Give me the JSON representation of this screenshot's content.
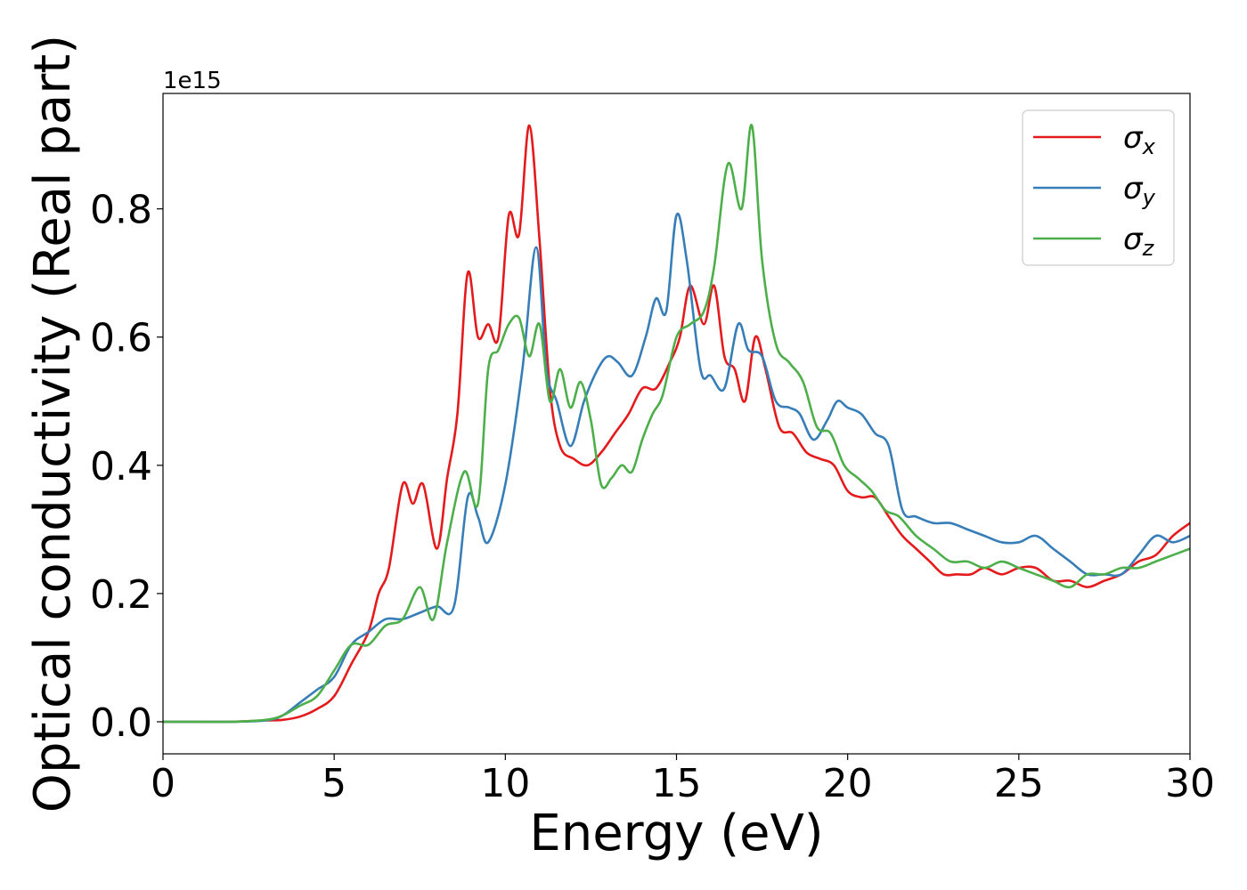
{
  "chart_data": {
    "type": "line",
    "xlabel": "Energy (eV)",
    "ylabel": "Optical conductivity (Real part)",
    "y_offset_label": "1e15",
    "xlim": [
      0,
      30
    ],
    "ylim": [
      -0.05,
      0.98
    ],
    "xticks": [
      0,
      5,
      10,
      15,
      20,
      25,
      30
    ],
    "xtick_labels": [
      "0",
      "5",
      "10",
      "15",
      "20",
      "25",
      "30"
    ],
    "yticks": [
      0.0,
      0.2,
      0.4,
      0.6,
      0.8
    ],
    "ytick_labels": [
      "0.0",
      "0.2",
      "0.4",
      "0.6",
      "0.8"
    ],
    "grid": false,
    "legend_position": "top-right",
    "series": [
      {
        "name": "σx",
        "symbol": "σ",
        "subscript": "x",
        "color": "#e41a1c",
        "x": [
          0,
          1,
          2,
          3,
          3.5,
          4,
          4.5,
          5,
          5.5,
          6,
          6.3,
          6.6,
          7,
          7.3,
          7.6,
          8,
          8.3,
          8.6,
          8.9,
          9.2,
          9.5,
          9.8,
          10.1,
          10.4,
          10.7,
          11,
          11.3,
          11.6,
          12,
          12.4,
          12.8,
          13.2,
          13.6,
          14,
          14.4,
          14.8,
          15.1,
          15.4,
          15.8,
          16.1,
          16.4,
          16.7,
          17,
          17.3,
          17.6,
          18,
          18.4,
          18.8,
          19.2,
          19.6,
          20,
          20.4,
          20.8,
          21.2,
          21.6,
          22,
          22.4,
          22.8,
          23.2,
          23.6,
          24,
          24.5,
          25,
          25.5,
          26,
          26.5,
          27,
          27.5,
          28,
          28.5,
          29,
          29.5,
          30
        ],
        "values": [
          0.0,
          0.0,
          0.0,
          0.002,
          0.003,
          0.008,
          0.02,
          0.04,
          0.09,
          0.14,
          0.2,
          0.24,
          0.37,
          0.34,
          0.37,
          0.27,
          0.38,
          0.48,
          0.7,
          0.6,
          0.62,
          0.6,
          0.79,
          0.76,
          0.93,
          0.75,
          0.52,
          0.43,
          0.41,
          0.4,
          0.42,
          0.45,
          0.48,
          0.52,
          0.52,
          0.56,
          0.6,
          0.68,
          0.62,
          0.68,
          0.57,
          0.55,
          0.5,
          0.6,
          0.55,
          0.46,
          0.45,
          0.42,
          0.41,
          0.4,
          0.36,
          0.35,
          0.35,
          0.32,
          0.29,
          0.27,
          0.25,
          0.23,
          0.23,
          0.23,
          0.24,
          0.23,
          0.24,
          0.24,
          0.22,
          0.22,
          0.21,
          0.22,
          0.23,
          0.25,
          0.26,
          0.29,
          0.31
        ]
      },
      {
        "name": "σy",
        "symbol": "σ",
        "subscript": "y",
        "color": "#377eb8",
        "x": [
          0,
          1,
          2,
          3,
          3.5,
          4,
          4.5,
          5,
          5.5,
          6,
          6.5,
          7,
          7.5,
          8,
          8.5,
          8.9,
          9.2,
          9.5,
          10,
          10.5,
          10.9,
          11.2,
          11.5,
          11.9,
          12.3,
          12.7,
          13,
          13.3,
          13.7,
          14.1,
          14.4,
          14.7,
          15,
          15.3,
          15.7,
          16,
          16.4,
          16.8,
          17.1,
          17.5,
          17.9,
          18.3,
          18.6,
          19,
          19.4,
          19.7,
          20,
          20.4,
          20.8,
          21.2,
          21.6,
          22,
          22.5,
          23,
          23.5,
          24,
          24.5,
          25,
          25.5,
          26,
          26.5,
          27,
          27.5,
          28,
          28.5,
          29,
          29.5,
          30
        ],
        "values": [
          0.0,
          0.0,
          0.0,
          0.002,
          0.01,
          0.03,
          0.05,
          0.07,
          0.12,
          0.14,
          0.16,
          0.16,
          0.17,
          0.18,
          0.18,
          0.35,
          0.32,
          0.28,
          0.37,
          0.55,
          0.74,
          0.55,
          0.5,
          0.43,
          0.5,
          0.55,
          0.57,
          0.56,
          0.54,
          0.6,
          0.66,
          0.64,
          0.79,
          0.72,
          0.55,
          0.54,
          0.52,
          0.62,
          0.58,
          0.57,
          0.5,
          0.49,
          0.48,
          0.44,
          0.47,
          0.5,
          0.49,
          0.48,
          0.45,
          0.43,
          0.33,
          0.32,
          0.31,
          0.31,
          0.3,
          0.29,
          0.28,
          0.28,
          0.29,
          0.27,
          0.25,
          0.23,
          0.23,
          0.23,
          0.26,
          0.29,
          0.28,
          0.29
        ]
      },
      {
        "name": "σz",
        "symbol": "σ",
        "subscript": "z",
        "color": "#4daf4a",
        "x": [
          0,
          1,
          2,
          3,
          3.5,
          4,
          4.5,
          5,
          5.5,
          6,
          6.5,
          7,
          7.5,
          7.9,
          8.3,
          8.8,
          9.2,
          9.5,
          9.8,
          10.1,
          10.4,
          10.7,
          11,
          11.3,
          11.6,
          11.9,
          12.2,
          12.5,
          12.8,
          13.1,
          13.4,
          13.7,
          14,
          14.3,
          14.6,
          15,
          15.4,
          15.8,
          16.1,
          16.5,
          16.9,
          17.2,
          17.5,
          17.9,
          18.3,
          18.7,
          19.1,
          19.5,
          19.9,
          20.3,
          20.7,
          21.1,
          21.5,
          22,
          22.5,
          23,
          23.5,
          24,
          24.5,
          25,
          25.5,
          26,
          26.5,
          27,
          27.5,
          28,
          28.5,
          29,
          29.5,
          30
        ],
        "values": [
          0.0,
          0.0,
          0.0,
          0.003,
          0.01,
          0.025,
          0.04,
          0.08,
          0.12,
          0.12,
          0.15,
          0.16,
          0.21,
          0.16,
          0.28,
          0.39,
          0.34,
          0.55,
          0.58,
          0.62,
          0.63,
          0.57,
          0.62,
          0.5,
          0.55,
          0.49,
          0.53,
          0.47,
          0.37,
          0.38,
          0.4,
          0.39,
          0.44,
          0.48,
          0.51,
          0.6,
          0.62,
          0.64,
          0.71,
          0.87,
          0.8,
          0.93,
          0.72,
          0.59,
          0.56,
          0.53,
          0.46,
          0.45,
          0.4,
          0.38,
          0.36,
          0.33,
          0.32,
          0.29,
          0.27,
          0.25,
          0.25,
          0.24,
          0.25,
          0.24,
          0.23,
          0.22,
          0.21,
          0.23,
          0.23,
          0.24,
          0.24,
          0.25,
          0.26,
          0.27
        ]
      }
    ]
  }
}
